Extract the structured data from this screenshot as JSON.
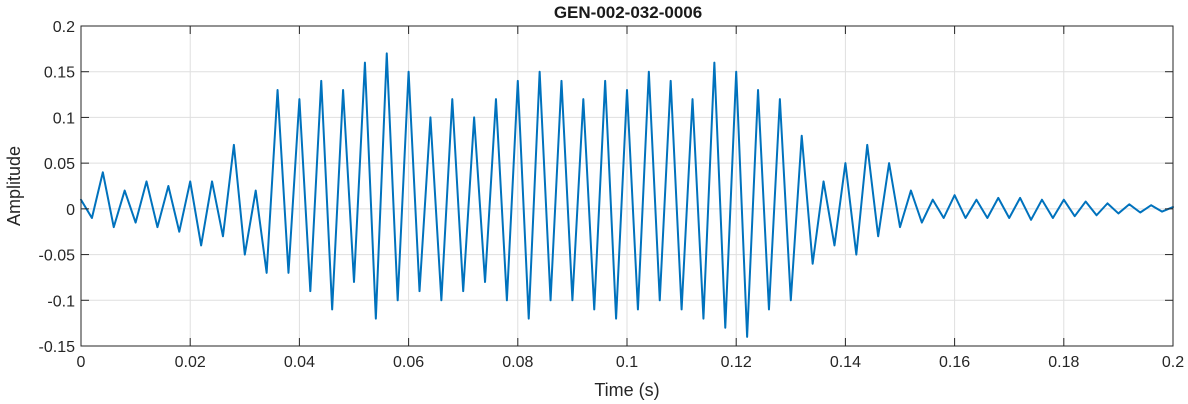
{
  "chart_data": {
    "type": "line",
    "title": "GEN-002-032-0006",
    "xlabel": "Time (s)",
    "ylabel": "Amplitude",
    "xlim": [
      0,
      0.2
    ],
    "ylim": [
      -0.15,
      0.2
    ],
    "xticks": [
      0,
      0.02,
      0.04,
      0.06,
      0.08,
      0.1,
      0.12,
      0.14,
      0.16,
      0.18,
      0.2
    ],
    "xtick_labels": [
      "0",
      "0.02",
      "0.04",
      "0.06",
      "0.08",
      "0.1",
      "0.12",
      "0.14",
      "0.16",
      "0.18",
      "0.2"
    ],
    "yticks": [
      -0.15,
      -0.1,
      -0.05,
      0,
      0.05,
      0.1,
      0.15,
      0.2
    ],
    "ytick_labels": [
      "-0.15",
      "-0.1",
      "-0.05",
      "0",
      "0.05",
      "0.1",
      "0.15",
      "0.2"
    ],
    "grid": true,
    "line_color": "#0072BD",
    "series": [
      {
        "x": [
          0,
          0.002,
          0.004,
          0.006,
          0.008,
          0.01,
          0.012,
          0.014,
          0.016,
          0.018,
          0.02,
          0.022,
          0.024,
          0.026,
          0.028,
          0.03,
          0.032,
          0.034,
          0.036,
          0.038,
          0.04,
          0.042,
          0.044,
          0.046,
          0.048,
          0.05,
          0.052,
          0.054,
          0.056,
          0.058,
          0.06,
          0.062,
          0.064,
          0.066,
          0.068,
          0.07,
          0.072,
          0.074,
          0.076,
          0.078,
          0.08,
          0.082,
          0.084,
          0.086,
          0.088,
          0.09,
          0.092,
          0.094,
          0.096,
          0.098,
          0.1,
          0.102,
          0.104,
          0.106,
          0.108,
          0.11,
          0.112,
          0.114,
          0.116,
          0.118,
          0.12,
          0.122,
          0.124,
          0.126,
          0.128,
          0.13,
          0.132,
          0.134,
          0.136,
          0.138,
          0.14,
          0.142,
          0.144,
          0.146,
          0.148,
          0.15,
          0.152,
          0.154,
          0.156,
          0.158,
          0.16,
          0.162,
          0.164,
          0.166,
          0.168,
          0.17,
          0.172,
          0.174,
          0.176,
          0.178,
          0.18,
          0.182,
          0.184,
          0.186,
          0.188,
          0.19,
          0.192,
          0.194,
          0.196,
          0.198,
          0.2
        ],
        "y": [
          0.01,
          -0.01,
          0.04,
          -0.02,
          0.02,
          -0.015,
          0.03,
          -0.02,
          0.025,
          -0.025,
          0.03,
          -0.04,
          0.03,
          -0.03,
          0.07,
          -0.05,
          0.02,
          -0.07,
          0.13,
          -0.07,
          0.12,
          -0.09,
          0.14,
          -0.11,
          0.13,
          -0.08,
          0.16,
          -0.12,
          0.17,
          -0.1,
          0.15,
          -0.09,
          0.1,
          -0.1,
          0.12,
          -0.09,
          0.1,
          -0.08,
          0.12,
          -0.1,
          0.14,
          -0.12,
          0.15,
          -0.1,
          0.14,
          -0.1,
          0.12,
          -0.11,
          0.14,
          -0.12,
          0.13,
          -0.11,
          0.15,
          -0.1,
          0.14,
          -0.11,
          0.12,
          -0.12,
          0.16,
          -0.13,
          0.15,
          -0.14,
          0.13,
          -0.11,
          0.12,
          -0.1,
          0.08,
          -0.06,
          0.03,
          -0.04,
          0.05,
          -0.05,
          0.07,
          -0.03,
          0.05,
          -0.02,
          0.02,
          -0.015,
          0.01,
          -0.01,
          0.015,
          -0.01,
          0.01,
          -0.01,
          0.012,
          -0.01,
          0.012,
          -0.012,
          0.01,
          -0.01,
          0.01,
          -0.008,
          0.008,
          -0.007,
          0.006,
          -0.005,
          0.005,
          -0.004,
          0.004,
          -0.003,
          0.002
        ]
      }
    ]
  }
}
